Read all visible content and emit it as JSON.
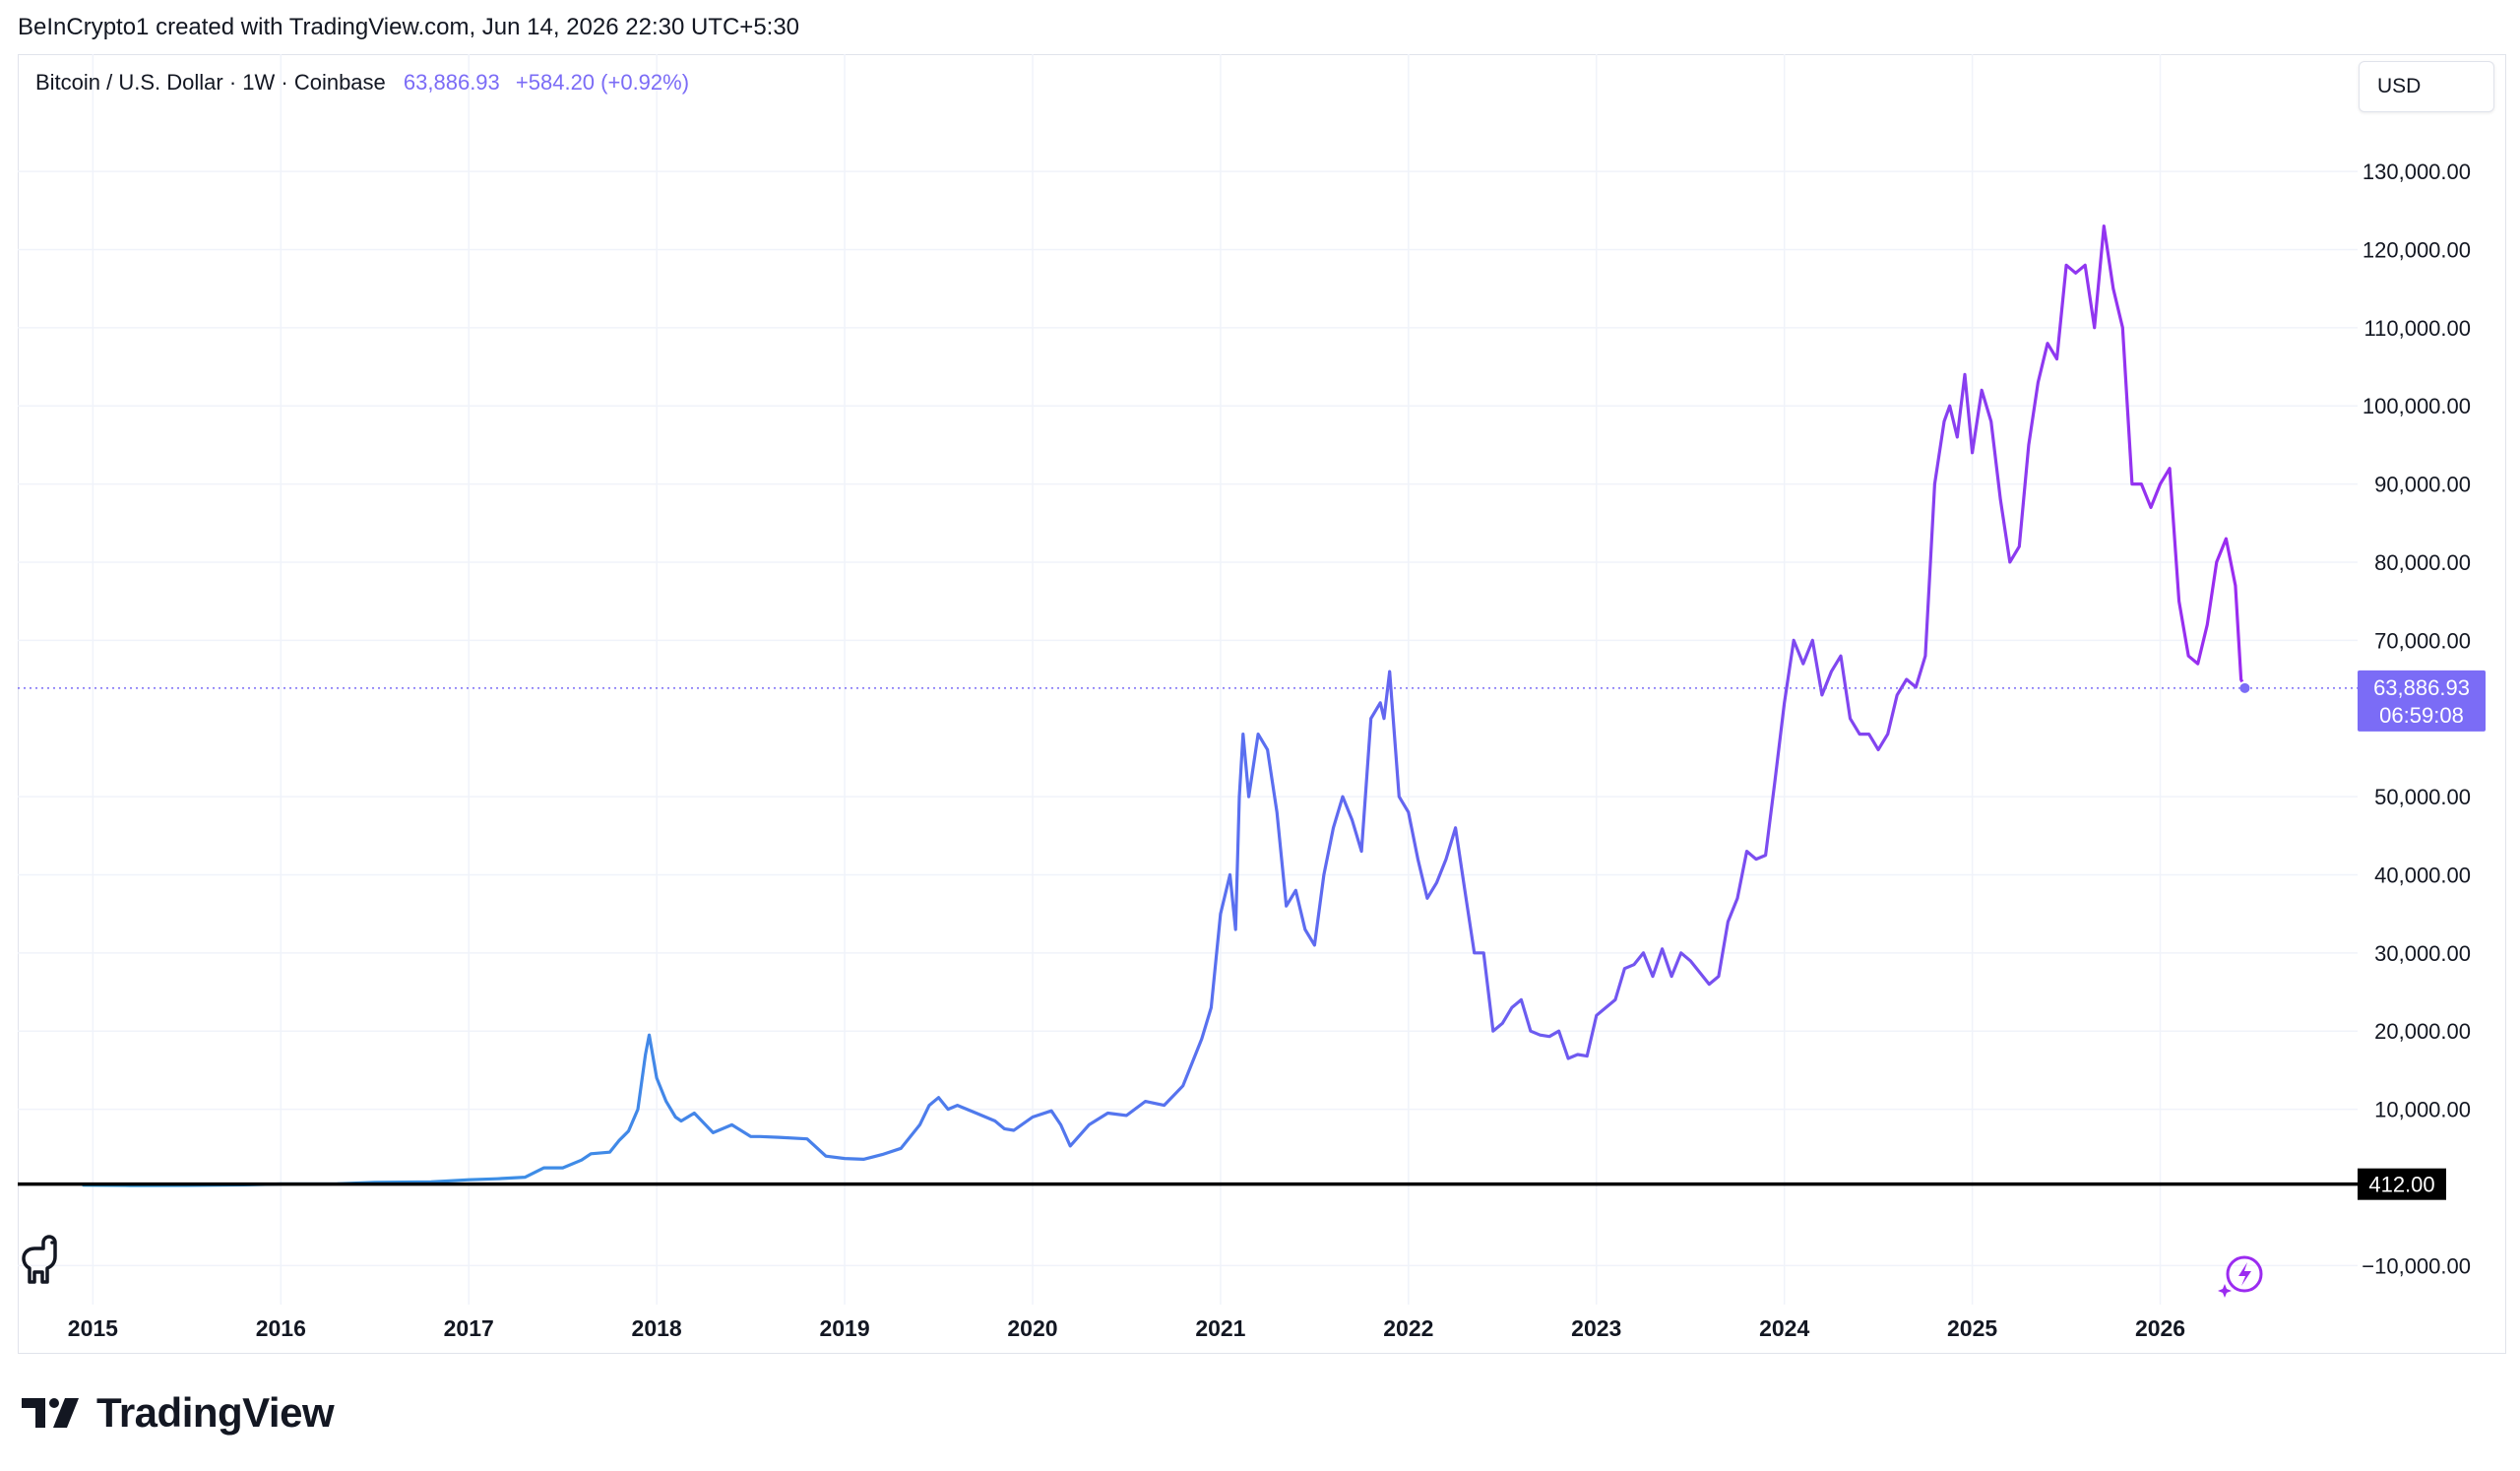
{
  "attribution": "BeInCrypto1 created with TradingView.com, Jun 14, 2026 22:30 UTC+5:30",
  "header": {
    "symbol": "Bitcoin / U.S. Dollar · 1W · Coinbase",
    "price": "63,886.93",
    "change": "+584.20 (+0.92%)"
  },
  "currency_button": "USD",
  "brand": "TradingView",
  "colors": {
    "line_start": "#2b9fe0",
    "line_mid": "#5b6ef0",
    "line_end": "#9b2bf0",
    "price_label": "#7b6cf6",
    "horizontal_line": "#000000",
    "grid": "#f0f3fa"
  },
  "icons": {
    "brand_logo": "tradingview-logo-icon",
    "dino": "dino-icon",
    "bolt": "lightning-icon"
  },
  "chart_data": {
    "type": "line",
    "title": "Bitcoin / U.S. Dollar · 1W · Coinbase",
    "xlabel": "",
    "ylabel": "",
    "xlim": [
      2014.6,
      2027.05
    ],
    "ylim": [
      -15000,
      145000
    ],
    "x_ticks": [
      "2015",
      "2016",
      "2017",
      "2018",
      "2019",
      "2020",
      "2021",
      "2022",
      "2023",
      "2024",
      "2025",
      "2026"
    ],
    "y_ticks": [
      {
        "value": 130000,
        "label": "130,000.00"
      },
      {
        "value": 120000,
        "label": "120,000.00"
      },
      {
        "value": 110000,
        "label": "110,000.00"
      },
      {
        "value": 100000,
        "label": "100,000.00"
      },
      {
        "value": 90000,
        "label": "90,000.00"
      },
      {
        "value": 80000,
        "label": "80,000.00"
      },
      {
        "value": 70000,
        "label": "70,000.00"
      },
      {
        "value": 50000,
        "label": "50,000.00"
      },
      {
        "value": 40000,
        "label": "40,000.00"
      },
      {
        "value": 30000,
        "label": "30,000.00"
      },
      {
        "value": 20000,
        "label": "20,000.00"
      },
      {
        "value": 10000,
        "label": "10,000.00"
      },
      {
        "value": -10000,
        "label": "−10,000.00"
      }
    ],
    "grid": true,
    "current_price": {
      "value": 63886.93,
      "label": "63,886.93",
      "countdown": "06:59:08"
    },
    "horizontal_line": {
      "value": 412,
      "label": "412.00"
    },
    "series": [
      {
        "x": [
          2014.95,
          2015.2,
          2015.5,
          2015.8,
          2016.0,
          2016.3,
          2016.5,
          2016.8,
          2017.0,
          2017.15,
          2017.3,
          2017.4,
          2017.5,
          2017.6,
          2017.65,
          2017.75,
          2017.8,
          2017.85,
          2017.9,
          2017.94,
          2017.96,
          2018.0,
          2018.05,
          2018.1,
          2018.13,
          2018.2,
          2018.3,
          2018.4,
          2018.5,
          2018.55,
          2018.65,
          2018.8,
          2018.9,
          2019.0,
          2019.1,
          2019.2,
          2019.3,
          2019.4,
          2019.45,
          2019.5,
          2019.55,
          2019.6,
          2019.7,
          2019.8,
          2019.85,
          2019.9,
          2020.0,
          2020.1,
          2020.15,
          2020.2,
          2020.3,
          2020.4,
          2020.5,
          2020.6,
          2020.7,
          2020.8,
          2020.85,
          2020.9,
          2020.95,
          2021.0,
          2021.05,
          2021.08,
          2021.1,
          2021.12,
          2021.15,
          2021.2,
          2021.25,
          2021.3,
          2021.35,
          2021.4,
          2021.45,
          2021.5,
          2021.55,
          2021.6,
          2021.65,
          2021.7,
          2021.75,
          2021.8,
          2021.85,
          2021.87,
          2021.9,
          2021.95,
          2022.0,
          2022.05,
          2022.1,
          2022.15,
          2022.2,
          2022.25,
          2022.3,
          2022.35,
          2022.4,
          2022.45,
          2022.5,
          2022.55,
          2022.6,
          2022.65,
          2022.7,
          2022.75,
          2022.8,
          2022.85,
          2022.9,
          2022.95,
          2023.0,
          2023.05,
          2023.1,
          2023.15,
          2023.2,
          2023.25,
          2023.3,
          2023.35,
          2023.4,
          2023.45,
          2023.5,
          2023.55,
          2023.6,
          2023.65,
          2023.7,
          2023.75,
          2023.8,
          2023.85,
          2023.9,
          2023.95,
          2024.0,
          2024.05,
          2024.1,
          2024.15,
          2024.2,
          2024.25,
          2024.3,
          2024.35,
          2024.4,
          2024.45,
          2024.5,
          2024.55,
          2024.6,
          2024.65,
          2024.7,
          2024.75,
          2024.8,
          2024.85,
          2024.88,
          2024.92,
          2024.96,
          2025.0,
          2025.05,
          2025.1,
          2025.15,
          2025.2,
          2025.25,
          2025.3,
          2025.35,
          2025.4,
          2025.45,
          2025.5,
          2025.55,
          2025.6,
          2025.65,
          2025.7,
          2025.75,
          2025.8,
          2025.85,
          2025.9,
          2025.95,
          2026.0,
          2026.05,
          2026.1,
          2026.15,
          2026.2,
          2026.25,
          2026.3,
          2026.35,
          2026.4,
          2026.43,
          2026.45
        ],
        "y": [
          300,
          250,
          260,
          320,
          430,
          450,
          650,
          700,
          980,
          1100,
          1300,
          2500,
          2500,
          3500,
          4300,
          4500,
          6000,
          7200,
          10000,
          17000,
          19500,
          14000,
          11000,
          9000,
          8500,
          9500,
          7000,
          8000,
          6500,
          6500,
          6400,
          6200,
          4000,
          3700,
          3600,
          4200,
          5000,
          8000,
          10500,
          11500,
          10000,
          10500,
          9500,
          8500,
          7500,
          7300,
          9000,
          9800,
          8000,
          5300,
          8000,
          9500,
          9200,
          11000,
          10500,
          13000,
          16000,
          19000,
          23000,
          35000,
          40000,
          33000,
          50000,
          58000,
          50000,
          58000,
          56000,
          48000,
          36000,
          38000,
          33000,
          31000,
          40000,
          46000,
          50000,
          47000,
          43000,
          60000,
          62000,
          60000,
          66000,
          50000,
          48000,
          42000,
          37000,
          39000,
          42000,
          46000,
          38000,
          30000,
          30000,
          20000,
          21000,
          23000,
          24000,
          20000,
          19500,
          19300,
          20000,
          16500,
          17000,
          16800,
          22000,
          23000,
          24000,
          28000,
          28500,
          30000,
          27000,
          30500,
          27000,
          30000,
          29000,
          27500,
          26000,
          27000,
          34000,
          37000,
          43000,
          42000,
          42500,
          52000,
          62000,
          70000,
          67000,
          70000,
          63000,
          66000,
          68000,
          60000,
          58000,
          58000,
          56000,
          58000,
          63000,
          65000,
          64000,
          68000,
          90000,
          98000,
          100000,
          96000,
          104000,
          94000,
          102000,
          98000,
          88000,
          80000,
          82000,
          95000,
          103000,
          108000,
          106000,
          118000,
          117000,
          118000,
          110000,
          123000,
          115000,
          110000,
          90000,
          90000,
          87000,
          90000,
          92000,
          75000,
          68000,
          67000,
          72000,
          80000,
          83000,
          77000,
          65000,
          63886.93
        ]
      }
    ]
  }
}
